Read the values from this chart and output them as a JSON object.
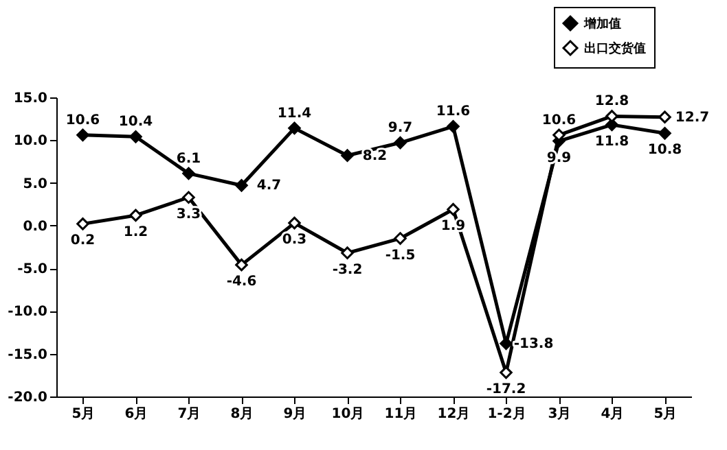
{
  "chart_data": {
    "type": "line",
    "categories": [
      "5月",
      "6月",
      "7月",
      "8月",
      "9月",
      "10月",
      "11月",
      "12月",
      "1-2月",
      "3月",
      "4月",
      "5月"
    ],
    "series": [
      {
        "name": "增加值",
        "color": "#000000",
        "values": [
          10.6,
          10.4,
          6.1,
          4.7,
          11.4,
          8.2,
          9.7,
          11.6,
          -13.8,
          9.9,
          11.8,
          10.8
        ]
      },
      {
        "name": "出口交货值",
        "color": "#000000",
        "values": [
          0.2,
          1.2,
          3.3,
          -4.6,
          0.3,
          -3.2,
          -1.5,
          1.9,
          -17.2,
          10.6,
          12.8,
          12.7
        ]
      }
    ],
    "ylim": [
      -20,
      15
    ],
    "yticks": [
      {
        "value": -20,
        "label": "-20.0"
      },
      {
        "value": -15,
        "label": "-15.0"
      },
      {
        "value": -10,
        "label": "-10.0"
      },
      {
        "value": -5,
        "label": "-5.0"
      },
      {
        "value": 0,
        "label": "0.0"
      },
      {
        "value": 5,
        "label": "5.0"
      },
      {
        "value": 10,
        "label": "10.0"
      },
      {
        "value": 15,
        "label": "15.0"
      }
    ],
    "grid": false,
    "legend": "top right",
    "marker": "diamond",
    "line_style": "solid",
    "data_labels": true
  }
}
